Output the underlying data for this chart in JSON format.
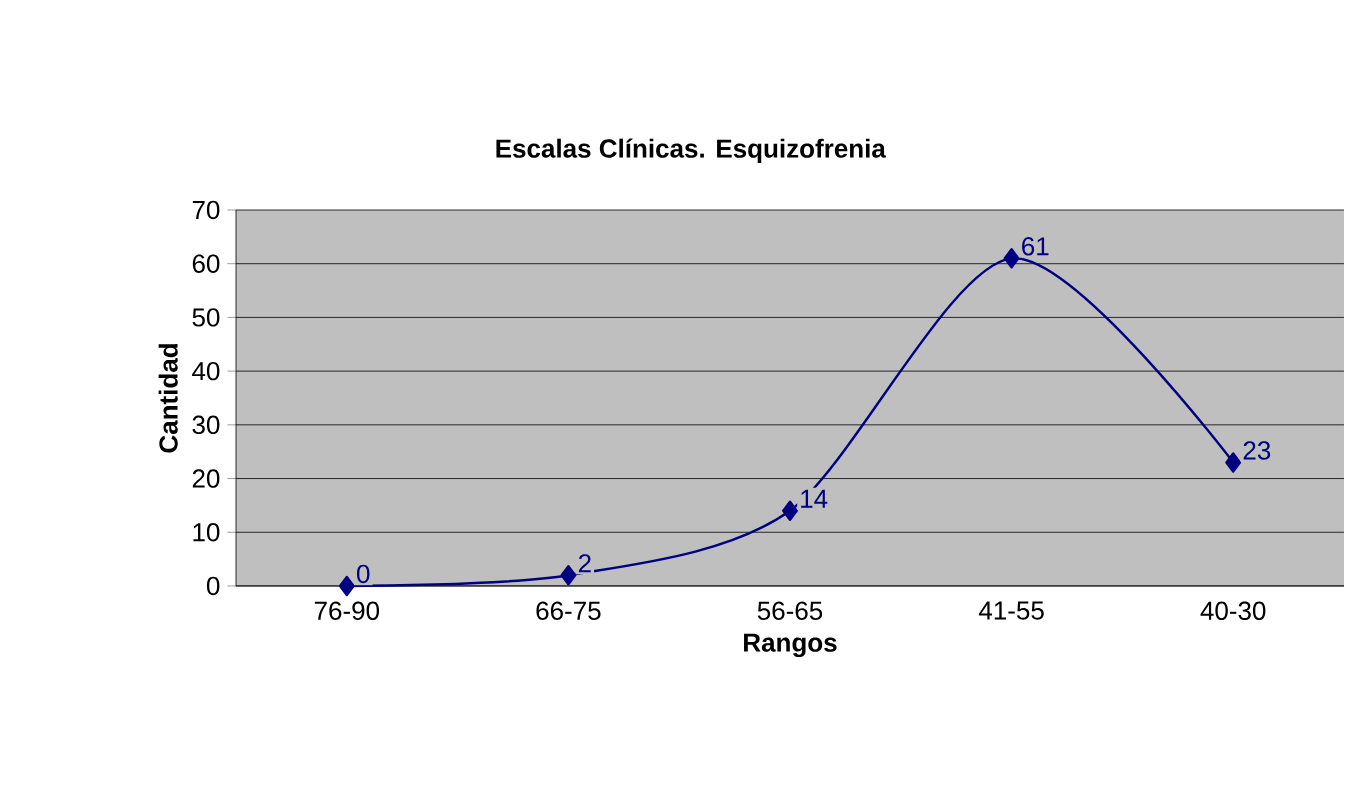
{
  "chart_data": {
    "type": "line",
    "title": "Escalas Clínicas. Esquizofrenia",
    "xlabel": "Rangos",
    "ylabel": "Cantidad",
    "categories": [
      "76-90",
      "66-75",
      "56-65",
      "41-55",
      "40-30"
    ],
    "values": [
      0,
      2,
      14,
      61,
      23
    ],
    "color": "#000080",
    "marker": "diamond",
    "data_labels": true,
    "ylim": [
      0,
      70
    ],
    "yticks": [
      0,
      10,
      20,
      30,
      40,
      50,
      60,
      70
    ],
    "grid": "y"
  }
}
